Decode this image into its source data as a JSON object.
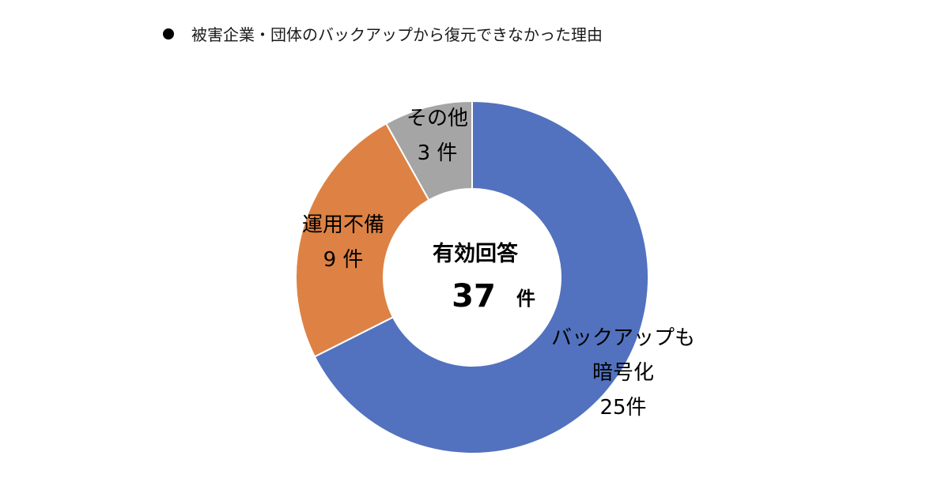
{
  "chart_data": {
    "type": "pie",
    "variant": "donut",
    "title": "被害企業・団体のバックアップから復元できなかった理由",
    "center": {
      "line1": "有効回答",
      "number": "37",
      "unit": "件"
    },
    "slices": [
      {
        "name": "バックアップも暗号化",
        "label_lines": [
          "バックアップも",
          "暗号化"
        ],
        "value": 25,
        "value_label": "25件",
        "color": "#5272BF"
      },
      {
        "name": "運用不備",
        "label_lines": [
          "運用不備"
        ],
        "value": 9,
        "value_label": "9 件",
        "color": "#DD8244"
      },
      {
        "name": "その他",
        "label_lines": [
          "その他"
        ],
        "value": 3,
        "value_label": "3 件",
        "color": "#A5A5A5"
      }
    ],
    "legend": "none",
    "start_angle": "12 o'clock",
    "direction": "clockwise"
  }
}
